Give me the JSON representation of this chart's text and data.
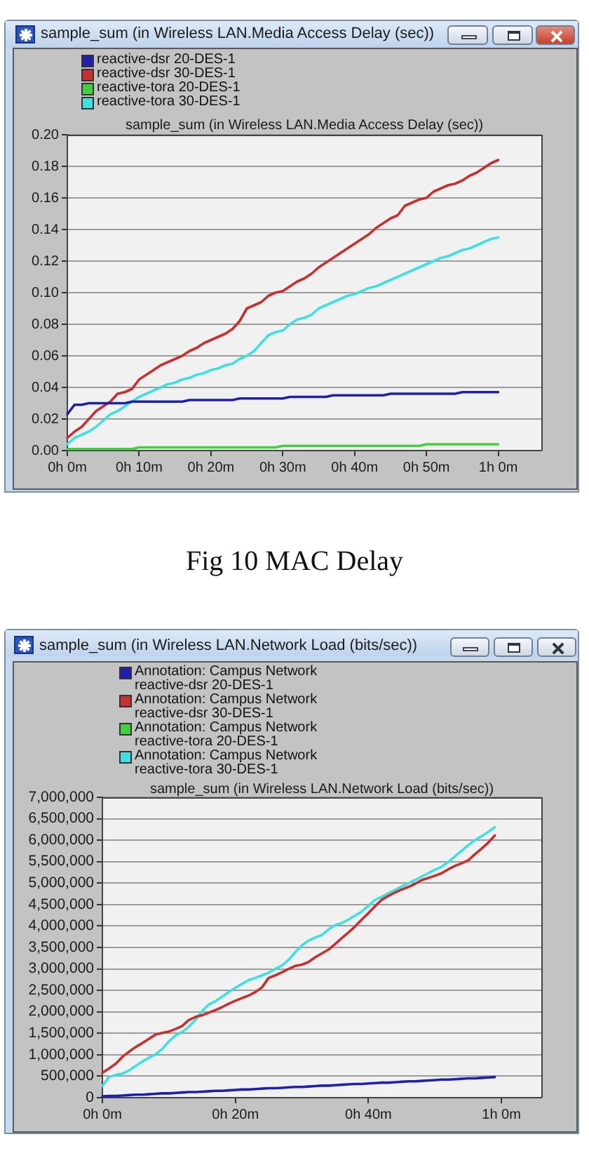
{
  "chart_data": [
    {
      "type": "line",
      "title": "sample_sum (in Wireless LAN.Media Access Delay (sec))",
      "subtitle": "sample_sum (in Wireless LAN.Media Access Delay (sec))",
      "annotations": [
        "Fig 10 MAC Delay"
      ],
      "legend": "top",
      "grid": "y",
      "categories": [
        "0h 0m",
        null,
        null,
        null,
        null,
        null,
        null,
        null,
        null,
        null,
        "0h 10m",
        null,
        null,
        null,
        null,
        null,
        null,
        null,
        null,
        null,
        "0h 20m",
        null,
        null,
        null,
        null,
        null,
        null,
        null,
        null,
        null,
        "0h 30m",
        null,
        null,
        null,
        null,
        null,
        null,
        null,
        null,
        null,
        "0h 40m",
        null,
        null,
        null,
        null,
        null,
        null,
        null,
        null,
        null,
        "0h 50m",
        null,
        null,
        null,
        null,
        null,
        null,
        null,
        null,
        null,
        "1h 0m",
        null,
        null,
        null,
        null,
        null,
        null
      ],
      "ylim": [
        0,
        0.2
      ],
      "yticks": [
        {
          "value": 0,
          "label": "0.00"
        },
        0.02,
        0.04,
        0.06,
        0.08,
        {
          "value": 0.1,
          "label": "0.10"
        },
        0.12,
        0.14,
        0.16,
        0.18,
        {
          "value": 0.2,
          "label": "0.20"
        }
      ],
      "series": [
        {
          "name": "reactive-dsr 20-DES-1",
          "color": "#2020b0",
          "values": [
            0.023,
            0.029,
            0.029,
            0.03,
            0.03,
            0.03,
            0.03,
            0.03,
            0.03,
            0.031,
            0.031,
            0.031,
            0.031,
            0.031,
            0.031,
            0.031,
            0.031,
            0.032,
            0.032,
            0.032,
            0.032,
            0.032,
            0.032,
            0.032,
            0.033,
            0.033,
            0.033,
            0.033,
            0.033,
            0.033,
            0.033,
            0.034,
            0.034,
            0.034,
            0.034,
            0.034,
            0.034,
            0.035,
            0.035,
            0.035,
            0.035,
            0.035,
            0.035,
            0.035,
            0.035,
            0.036,
            0.036,
            0.036,
            0.036,
            0.036,
            0.036,
            0.036,
            0.036,
            0.036,
            0.036,
            0.037,
            0.037,
            0.037,
            0.037,
            0.037,
            0.037,
            null,
            null,
            null,
            null,
            null,
            null
          ]
        },
        {
          "name": "reactive-dsr 30-DES-1",
          "color": "#c83030",
          "values": [
            0.008,
            0.012,
            0.015,
            0.02,
            0.025,
            0.028,
            0.031,
            0.036,
            0.037,
            0.039,
            0.045,
            0.048,
            0.051,
            0.054,
            0.056,
            0.058,
            0.06,
            0.063,
            0.065,
            0.068,
            0.07,
            0.072,
            0.074,
            0.077,
            0.082,
            0.09,
            0.092,
            0.094,
            0.098,
            0.1,
            0.101,
            0.104,
            0.107,
            0.109,
            0.112,
            0.116,
            0.119,
            0.122,
            0.125,
            0.128,
            0.131,
            0.134,
            0.137,
            0.141,
            0.144,
            0.147,
            0.149,
            0.155,
            0.157,
            0.159,
            0.16,
            0.164,
            0.166,
            0.168,
            0.169,
            0.171,
            0.174,
            0.176,
            0.179,
            0.182,
            0.184,
            null,
            null,
            null,
            null,
            null,
            null
          ]
        },
        {
          "name": "reactive-tora 20-DES-1",
          "color": "#40d040",
          "values": [
            0.001,
            0.001,
            0.001,
            0.001,
            0.001,
            0.001,
            0.001,
            0.001,
            0.001,
            0.001,
            0.002,
            0.002,
            0.002,
            0.002,
            0.002,
            0.002,
            0.002,
            0.002,
            0.002,
            0.002,
            0.002,
            0.002,
            0.002,
            0.002,
            0.002,
            0.002,
            0.002,
            0.002,
            0.002,
            0.002,
            0.003,
            0.003,
            0.003,
            0.003,
            0.003,
            0.003,
            0.003,
            0.003,
            0.003,
            0.003,
            0.003,
            0.003,
            0.003,
            0.003,
            0.003,
            0.003,
            0.003,
            0.003,
            0.003,
            0.003,
            0.004,
            0.004,
            0.004,
            0.004,
            0.004,
            0.004,
            0.004,
            0.004,
            0.004,
            0.004,
            0.004,
            null,
            null,
            null,
            null,
            null,
            null
          ]
        },
        {
          "name": "reactive-tora 30-DES-1",
          "color": "#40e0e0",
          "values": [
            0.004,
            0.008,
            0.01,
            0.012,
            0.015,
            0.019,
            0.023,
            0.025,
            0.028,
            0.031,
            0.034,
            0.036,
            0.038,
            0.04,
            0.042,
            0.043,
            0.045,
            0.046,
            0.048,
            0.049,
            0.051,
            0.052,
            0.054,
            0.055,
            0.058,
            0.06,
            0.063,
            0.068,
            0.073,
            0.075,
            0.076,
            0.08,
            0.083,
            0.084,
            0.086,
            0.09,
            0.092,
            0.094,
            0.096,
            0.098,
            0.099,
            0.101,
            0.103,
            0.104,
            0.106,
            0.108,
            0.11,
            0.112,
            0.114,
            0.116,
            0.118,
            0.12,
            0.122,
            0.123,
            0.125,
            0.127,
            0.128,
            0.13,
            0.132,
            0.134,
            0.135,
            null,
            null,
            null,
            null,
            null,
            null
          ]
        }
      ]
    },
    {
      "type": "line",
      "title": "sample_sum (in Wireless LAN.Network Load (bits/sec))",
      "subtitle": "sample_sum (in Wireless LAN.Network Load (bits/sec))",
      "legend": "top",
      "grid": "y",
      "categories": [
        "0h 0m",
        null,
        null,
        null,
        null,
        null,
        null,
        null,
        null,
        null,
        null,
        null,
        null,
        null,
        null,
        null,
        null,
        null,
        null,
        null,
        "0h 20m",
        null,
        null,
        null,
        null,
        null,
        null,
        null,
        null,
        null,
        null,
        null,
        null,
        null,
        null,
        null,
        null,
        null,
        null,
        null,
        "0h 40m",
        null,
        null,
        null,
        null,
        null,
        null,
        null,
        null,
        null,
        null,
        null,
        null,
        null,
        null,
        null,
        null,
        null,
        null,
        null,
        "1h 0m",
        null,
        null,
        null,
        null,
        null,
        null
      ],
      "ylim": [
        0,
        7000000
      ],
      "yticks": [
        0,
        {
          "value": 500000,
          "label": "500,000"
        },
        {
          "value": 1000000,
          "label": "1,000,000"
        },
        {
          "value": 1500000,
          "label": "1,500,000"
        },
        {
          "value": 2000000,
          "label": "2,000,000"
        },
        {
          "value": 2500000,
          "label": "2,500,000"
        },
        {
          "value": 3000000,
          "label": "3,000,000"
        },
        {
          "value": 3500000,
          "label": "3,500,000"
        },
        {
          "value": 4000000,
          "label": "4,000,000"
        },
        {
          "value": 4500000,
          "label": "4,500,000"
        },
        {
          "value": 5000000,
          "label": "5,000,000"
        },
        {
          "value": 5500000,
          "label": "5,500,000"
        },
        {
          "value": 6000000,
          "label": "6,000,000"
        },
        {
          "value": 6500000,
          "label": "6,500,000"
        },
        {
          "value": 7000000,
          "label": "7,000,000"
        }
      ],
      "series": [
        {
          "name": "Annotation: Campus Network reactive-dsr 20-DES-1",
          "color": "#2020b0",
          "values": [
            30000,
            40000,
            40000,
            50000,
            60000,
            70000,
            70000,
            80000,
            90000,
            100000,
            100000,
            110000,
            120000,
            130000,
            130000,
            140000,
            150000,
            160000,
            160000,
            170000,
            180000,
            190000,
            190000,
            200000,
            210000,
            220000,
            220000,
            230000,
            240000,
            250000,
            250000,
            260000,
            270000,
            280000,
            280000,
            290000,
            300000,
            310000,
            320000,
            320000,
            330000,
            340000,
            350000,
            350000,
            360000,
            370000,
            380000,
            380000,
            390000,
            400000,
            410000,
            420000,
            420000,
            430000,
            440000,
            450000,
            450000,
            460000,
            470000,
            480000,
            null,
            null,
            null,
            null,
            null,
            null,
            null
          ]
        },
        {
          "name": "Annotation: Campus Network reactive-dsr 30-DES-1",
          "color": "#c83030",
          "values": [
            580000,
            680000,
            790000,
            950000,
            1070000,
            1180000,
            1270000,
            1370000,
            1470000,
            1510000,
            1540000,
            1600000,
            1670000,
            1810000,
            1880000,
            1920000,
            1980000,
            2040000,
            2110000,
            2190000,
            2260000,
            2320000,
            2380000,
            2460000,
            2570000,
            2790000,
            2850000,
            2920000,
            3000000,
            3070000,
            3100000,
            3160000,
            3270000,
            3360000,
            3450000,
            3580000,
            3720000,
            3850000,
            3990000,
            4150000,
            4300000,
            4460000,
            4610000,
            4700000,
            4780000,
            4850000,
            4910000,
            4980000,
            5070000,
            5120000,
            5170000,
            5230000,
            5320000,
            5400000,
            5460000,
            5530000,
            5670000,
            5800000,
            5940000,
            6110000,
            null,
            null,
            null,
            null,
            null,
            null,
            null
          ]
        },
        {
          "name": "Annotation: Campus Network reactive-tora 20-DES-1",
          "color": "#40d040",
          "values": [
            null,
            null,
            null,
            null,
            null,
            null,
            null,
            null,
            null,
            null,
            null,
            null,
            null,
            null,
            null,
            null,
            null,
            null,
            null,
            null,
            null,
            null,
            null,
            null,
            null,
            null,
            null,
            null,
            null,
            null,
            null,
            null,
            null,
            null,
            null,
            null,
            null,
            null,
            null,
            null,
            null,
            null,
            null,
            null,
            null,
            null,
            null,
            null,
            null,
            null,
            null,
            null,
            null,
            null,
            null,
            null,
            null,
            null,
            null,
            null,
            null,
            null,
            null,
            null,
            null,
            null,
            null
          ]
        },
        {
          "name": "Annotation: Campus Network reactive-tora 30-DES-1",
          "color": "#40e0e0",
          "values": [
            270000,
            480000,
            530000,
            560000,
            630000,
            740000,
            840000,
            930000,
            1010000,
            1130000,
            1310000,
            1450000,
            1530000,
            1650000,
            1810000,
            2020000,
            2170000,
            2250000,
            2350000,
            2460000,
            2560000,
            2650000,
            2740000,
            2790000,
            2850000,
            2910000,
            3000000,
            3080000,
            3210000,
            3390000,
            3550000,
            3660000,
            3730000,
            3790000,
            3920000,
            4020000,
            4070000,
            4150000,
            4240000,
            4340000,
            4470000,
            4610000,
            4680000,
            4760000,
            4840000,
            4920000,
            5000000,
            5070000,
            5150000,
            5230000,
            5310000,
            5380000,
            5490000,
            5620000,
            5750000,
            5880000,
            6000000,
            6090000,
            6190000,
            6300000,
            null,
            null,
            null,
            null,
            null,
            null,
            null
          ]
        }
      ]
    }
  ]
}
